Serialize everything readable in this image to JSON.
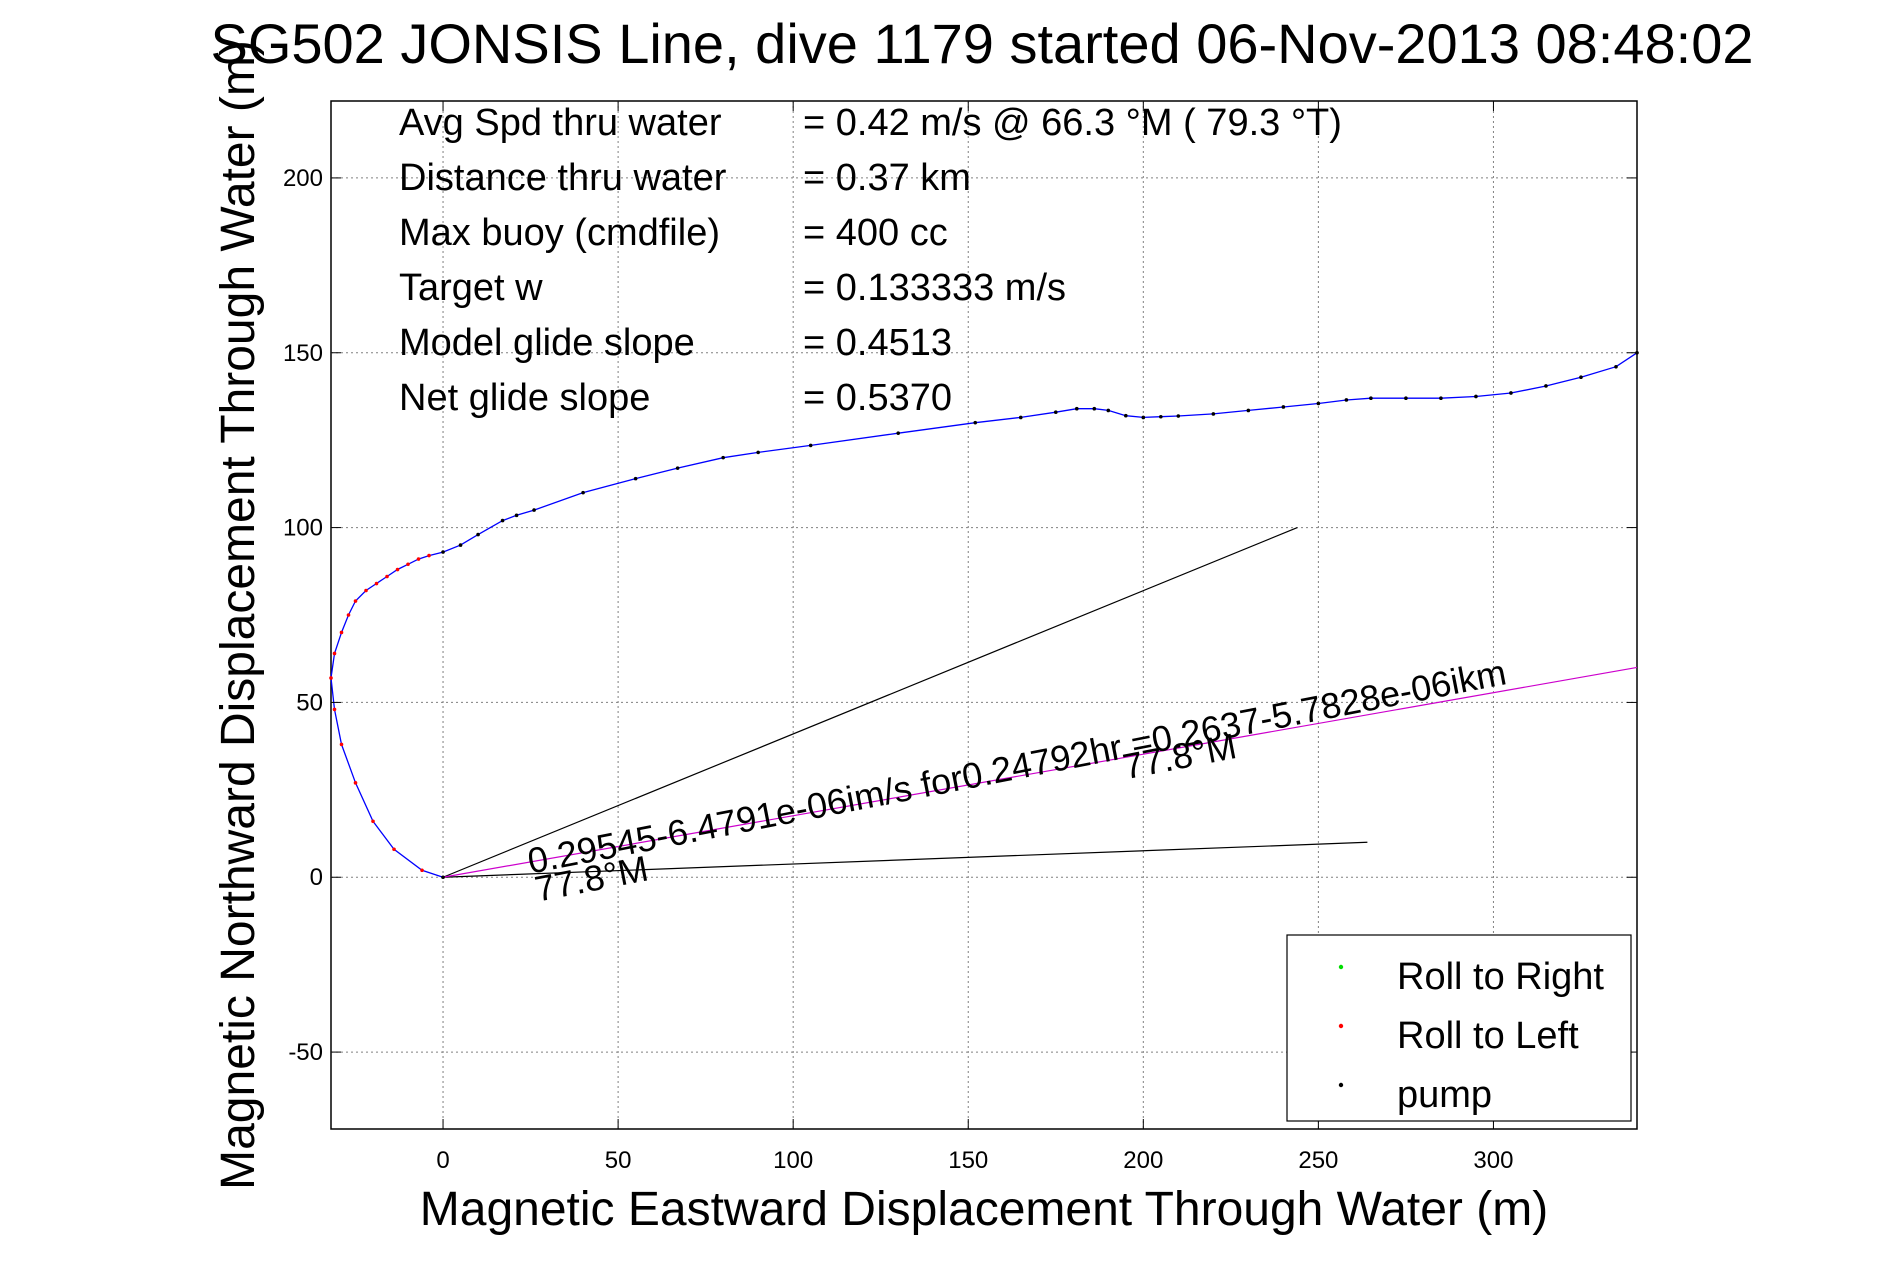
{
  "chart_data": {
    "type": "line",
    "title": "SG502 JONSIS Line, dive 1179 started 06-Nov-2013 08:48:02",
    "xlabel": "Magnetic Eastward Displacement Through Water (m)",
    "ylabel": "Magnetic Northward Displacement Through Water (m)",
    "xlim": [
      -32,
      341
    ],
    "ylim": [
      -72,
      222
    ],
    "xticks": [
      0,
      50,
      100,
      150,
      200,
      250,
      300
    ],
    "yticks": [
      -50,
      0,
      50,
      100,
      150,
      200
    ],
    "xtick_labels": [
      "0",
      "50",
      "100",
      "150",
      "200",
      "250",
      "300"
    ],
    "ytick_labels": [
      "-50",
      "0",
      "50",
      "100",
      "150",
      "200"
    ],
    "grid": true,
    "legend_position": "bottom-right",
    "legend": [
      {
        "label": "Roll to Right",
        "color": "#00dd00"
      },
      {
        "label": "Roll to Left",
        "color": "#ff0000"
      },
      {
        "label": "pump",
        "color": "#000000"
      }
    ],
    "stats": [
      {
        "label": "Avg Spd thru water",
        "value": "=  0.42 m/s @  66.3 °M ( 79.3 °T)"
      },
      {
        "label": "Distance thru water",
        "value": "=  0.37 km"
      },
      {
        "label": "Max buoy (cmdfile)",
        "value": "= 400 cc"
      },
      {
        "label": "Target w",
        "value": "= 0.133333 m/s"
      },
      {
        "label": "Model glide slope",
        "value": "= 0.4513"
      },
      {
        "label": "Net glide slope",
        "value": "= 0.5370"
      }
    ],
    "series": [
      {
        "color": "#0000ff",
        "x": [
          0,
          -6,
          -14,
          -20,
          -25,
          -29,
          -31,
          -32,
          -31,
          -29,
          -27,
          -25,
          -22,
          -19,
          -16,
          -13,
          -10,
          -7,
          -4,
          0,
          5,
          10,
          17,
          21,
          26,
          40,
          55,
          67,
          80,
          90,
          105,
          130,
          152,
          165,
          175,
          181,
          186,
          190,
          195,
          200,
          205,
          210,
          220,
          230,
          240,
          250,
          258,
          265,
          275,
          285,
          295,
          305,
          315,
          325,
          335,
          341
        ],
        "y": [
          0,
          2,
          8,
          16,
          27,
          38,
          48,
          57,
          64,
          70,
          75,
          79,
          82,
          84,
          86,
          88,
          89.5,
          91,
          92,
          93,
          95,
          98,
          102,
          103.5,
          105,
          110,
          114,
          117,
          120,
          121.5,
          123.5,
          127,
          130,
          131.5,
          133,
          134,
          134,
          133.5,
          132,
          131.5,
          131.7,
          131.9,
          132.5,
          133.5,
          134.5,
          135.5,
          136.5,
          137,
          137,
          137,
          137.5,
          138.5,
          140.5,
          143,
          146,
          150
        ]
      }
    ],
    "reference_lines": [
      {
        "color": "#000000",
        "x": [
          0,
          244
        ],
        "y": [
          0,
          100
        ]
      },
      {
        "color": "#000000",
        "x": [
          0,
          264
        ],
        "y": [
          0,
          10
        ]
      },
      {
        "color": "#cc00cc",
        "x": [
          0,
          341
        ],
        "y": [
          0,
          60
        ]
      }
    ],
    "annotations": [
      {
        "text": "0.29545-6.4791e-06im/s for0.24792hr =0.2637-5.7828e-06ikm",
        "x": 25,
        "y": 1,
        "rotate_deg": -11
      },
      {
        "text": "77.8°M",
        "x": 27,
        "y": -7,
        "rotate_deg": -11
      },
      {
        "text": "77.8°M",
        "x": 195,
        "y": 28,
        "rotate_deg": -11
      }
    ]
  }
}
